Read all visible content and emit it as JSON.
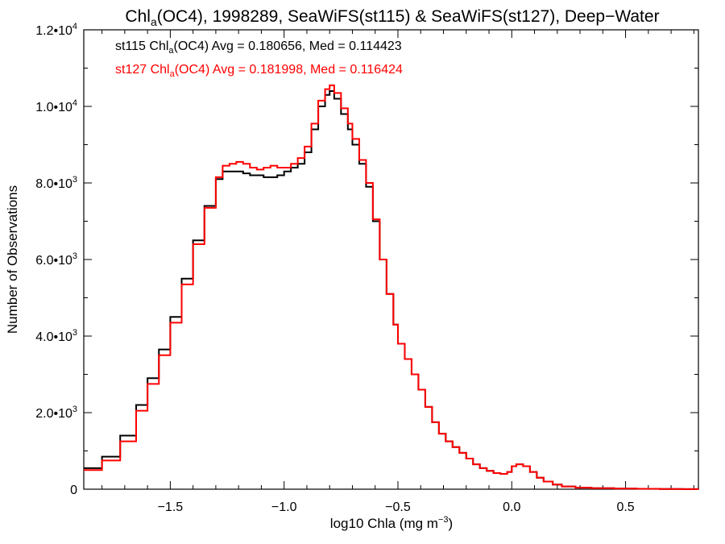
{
  "chart_data": {
    "type": "line",
    "title": {
      "prefix": "Chl",
      "sub": "a",
      "suffix": "(OC4), 1998289, SeaWiFS(st115) & SeaWiFS(st127), Deep−Water"
    },
    "xlabel": {
      "main": "log10 Chla (mg m",
      "sup": "−3",
      "close": ")"
    },
    "ylabel": "Number of Observations",
    "xlim": [
      -1.88,
      0.82
    ],
    "ylim": [
      0,
      12000
    ],
    "x_ticks": [
      {
        "value": -1.5,
        "label": "−1.5"
      },
      {
        "value": -1.0,
        "label": "−1.0"
      },
      {
        "value": -0.5,
        "label": "−0.5"
      },
      {
        "value": 0.0,
        "label": "0.0"
      },
      {
        "value": 0.5,
        "label": "0.5"
      }
    ],
    "y_ticks": [
      {
        "value": 0,
        "mant": "0",
        "exp": ""
      },
      {
        "value": 2000,
        "mant": "2.0•10",
        "exp": "3"
      },
      {
        "value": 4000,
        "mant": "4.0•10",
        "exp": "3"
      },
      {
        "value": 6000,
        "mant": "6.0•10",
        "exp": "3"
      },
      {
        "value": 8000,
        "mant": "8.0•10",
        "exp": "3"
      },
      {
        "value": 10000,
        "mant": "1.0•10",
        "exp": "4"
      },
      {
        "value": 12000,
        "mant": "1.2•10",
        "exp": "4"
      }
    ],
    "grid": false,
    "legend_position": "top-left",
    "series": [
      {
        "label_prefix": "st115 Chl",
        "label_sub": "a",
        "label_suffix": "(OC4) Avg = 0.180656, Med = 0.114423",
        "color": "#000000",
        "x": [
          -1.88,
          -1.8,
          -1.72,
          -1.65,
          -1.6,
          -1.55,
          -1.5,
          -1.45,
          -1.4,
          -1.35,
          -1.3,
          -1.27,
          -1.24,
          -1.21,
          -1.18,
          -1.15,
          -1.12,
          -1.09,
          -1.06,
          -1.03,
          -1.0,
          -0.97,
          -0.94,
          -0.91,
          -0.88,
          -0.85,
          -0.82,
          -0.8,
          -0.78,
          -0.75,
          -0.72,
          -0.7,
          -0.67,
          -0.64,
          -0.61,
          -0.58,
          -0.55,
          -0.52,
          -0.5,
          -0.47,
          -0.44,
          -0.41,
          -0.38,
          -0.35,
          -0.32,
          -0.29,
          -0.26,
          -0.23,
          -0.2,
          -0.17,
          -0.14,
          -0.11,
          -0.08,
          -0.05,
          -0.02,
          0.0,
          0.02,
          0.05,
          0.08,
          0.11,
          0.14,
          0.18,
          0.22,
          0.28,
          0.35,
          0.45,
          0.55,
          0.65,
          0.75,
          0.82
        ],
        "values": [
          550,
          850,
          1400,
          2200,
          2900,
          3650,
          4500,
          5500,
          6500,
          7400,
          8100,
          8300,
          8300,
          8300,
          8250,
          8200,
          8200,
          8150,
          8150,
          8200,
          8300,
          8400,
          8500,
          8800,
          9400,
          10000,
          10300,
          10400,
          10200,
          9800,
          9400,
          9000,
          8500,
          7900,
          7000,
          6000,
          5100,
          4300,
          3800,
          3400,
          3000,
          2600,
          2150,
          1750,
          1450,
          1250,
          1100,
          950,
          800,
          650,
          550,
          480,
          420,
          400,
          450,
          600,
          650,
          600,
          450,
          300,
          200,
          120,
          70,
          40,
          25,
          15,
          10,
          5,
          3,
          0
        ]
      },
      {
        "label_prefix": "st127 Chl",
        "label_sub": "a",
        "label_suffix": "(OC4) Avg = 0.181998, Med = 0.116424",
        "color": "#ff0000",
        "x": [
          -1.88,
          -1.8,
          -1.72,
          -1.65,
          -1.6,
          -1.55,
          -1.5,
          -1.45,
          -1.4,
          -1.35,
          -1.3,
          -1.27,
          -1.24,
          -1.21,
          -1.18,
          -1.15,
          -1.12,
          -1.09,
          -1.06,
          -1.03,
          -1.0,
          -0.97,
          -0.94,
          -0.91,
          -0.88,
          -0.85,
          -0.82,
          -0.8,
          -0.78,
          -0.75,
          -0.72,
          -0.7,
          -0.67,
          -0.64,
          -0.61,
          -0.58,
          -0.55,
          -0.52,
          -0.5,
          -0.47,
          -0.44,
          -0.41,
          -0.38,
          -0.35,
          -0.32,
          -0.29,
          -0.26,
          -0.23,
          -0.2,
          -0.17,
          -0.14,
          -0.11,
          -0.08,
          -0.05,
          -0.02,
          0.0,
          0.02,
          0.05,
          0.08,
          0.11,
          0.14,
          0.18,
          0.22,
          0.28,
          0.35,
          0.45,
          0.55,
          0.65,
          0.75,
          0.82
        ],
        "values": [
          500,
          750,
          1250,
          2050,
          2750,
          3500,
          4350,
          5350,
          6400,
          7350,
          8150,
          8450,
          8500,
          8550,
          8500,
          8400,
          8350,
          8400,
          8450,
          8400,
          8400,
          8500,
          8650,
          8950,
          9550,
          10150,
          10450,
          10550,
          10350,
          9950,
          9550,
          9150,
          8600,
          8000,
          7050,
          6000,
          5100,
          4300,
          3800,
          3400,
          3000,
          2600,
          2150,
          1750,
          1450,
          1250,
          1100,
          950,
          800,
          650,
          550,
          480,
          420,
          400,
          450,
          600,
          650,
          600,
          450,
          300,
          200,
          120,
          70,
          40,
          25,
          15,
          10,
          5,
          3,
          0
        ]
      }
    ]
  }
}
